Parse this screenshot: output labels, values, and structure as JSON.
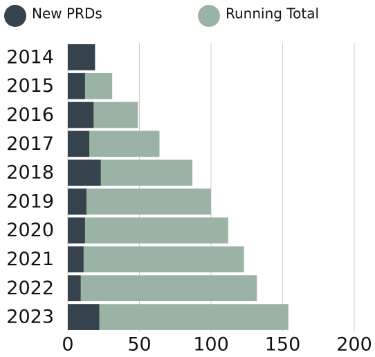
{
  "chart_data": {
    "type": "bar",
    "orientation": "horizontal",
    "overlap": true,
    "categories": [
      "2014",
      "2015",
      "2016",
      "2017",
      "2018",
      "2019",
      "2020",
      "2021",
      "2022",
      "2023"
    ],
    "series": [
      {
        "name": "New PRDs",
        "color": "#36434d",
        "values": [
          19,
          12,
          18,
          15,
          23,
          13,
          12,
          11,
          9,
          22
        ]
      },
      {
        "name": "Running Total",
        "color": "#9bb3a4",
        "values": [
          19,
          31,
          49,
          64,
          87,
          100,
          112,
          123,
          132,
          154
        ]
      }
    ],
    "xlim": [
      0,
      200
    ],
    "xticks": [
      0,
      50,
      100,
      150,
      200
    ],
    "grid": true
  }
}
